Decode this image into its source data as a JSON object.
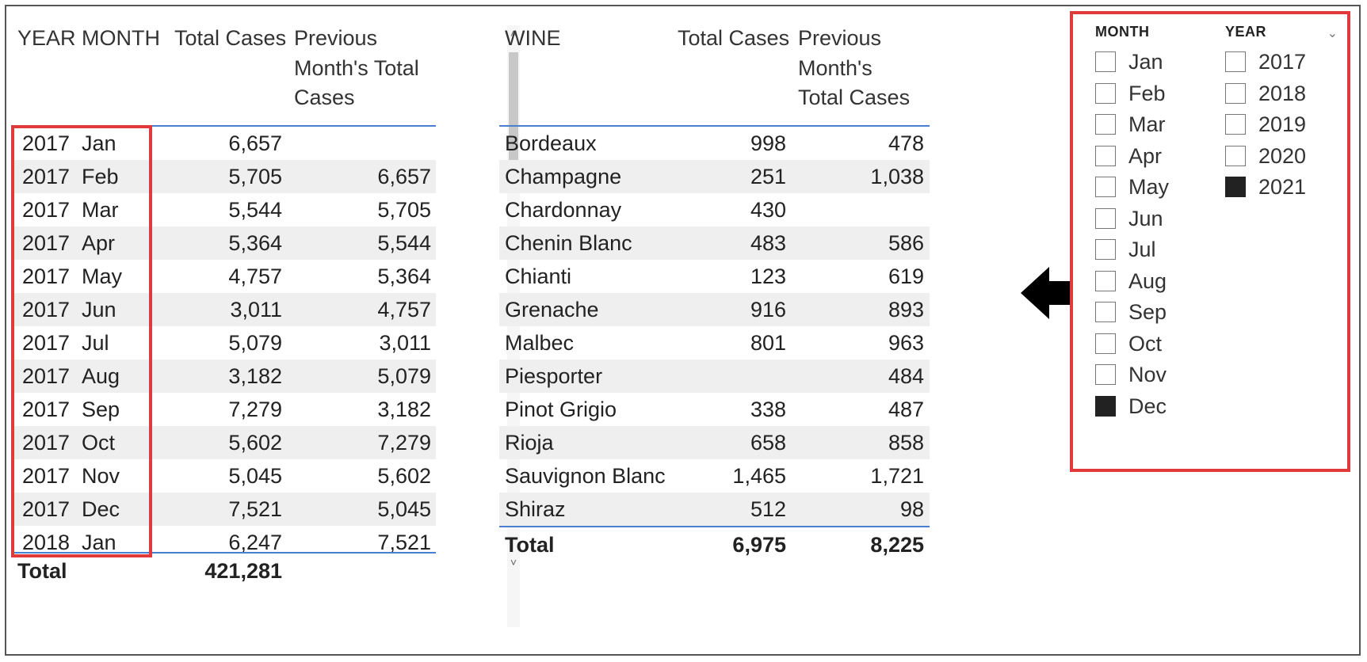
{
  "table1": {
    "headers": {
      "year": "YEAR",
      "month": "MONTH",
      "total_cases": "Total Cases",
      "prev_line1": "Previous",
      "prev_line2": "Month's Total",
      "prev_line3": "Cases"
    },
    "rows": [
      {
        "year": "2017",
        "month": "Jan",
        "total": "6,657",
        "prev": ""
      },
      {
        "year": "2017",
        "month": "Feb",
        "total": "5,705",
        "prev": "6,657"
      },
      {
        "year": "2017",
        "month": "Mar",
        "total": "5,544",
        "prev": "5,705"
      },
      {
        "year": "2017",
        "month": "Apr",
        "total": "5,364",
        "prev": "5,544"
      },
      {
        "year": "2017",
        "month": "May",
        "total": "4,757",
        "prev": "5,364"
      },
      {
        "year": "2017",
        "month": "Jun",
        "total": "3,011",
        "prev": "4,757"
      },
      {
        "year": "2017",
        "month": "Jul",
        "total": "5,079",
        "prev": "3,011"
      },
      {
        "year": "2017",
        "month": "Aug",
        "total": "3,182",
        "prev": "5,079"
      },
      {
        "year": "2017",
        "month": "Sep",
        "total": "7,279",
        "prev": "3,182"
      },
      {
        "year": "2017",
        "month": "Oct",
        "total": "5,602",
        "prev": "7,279"
      },
      {
        "year": "2017",
        "month": "Nov",
        "total": "5,045",
        "prev": "5,602"
      },
      {
        "year": "2017",
        "month": "Dec",
        "total": "7,521",
        "prev": "5,045"
      },
      {
        "year": "2018",
        "month": "Jan",
        "total": "6,247",
        "prev": "7,521"
      }
    ],
    "total_label": "Total",
    "total_value": "421,281"
  },
  "table2": {
    "headers": {
      "wine": "WINE",
      "total_cases": "Total Cases",
      "prev_line1": "Previous",
      "prev_line2": "Month's",
      "prev_line3": "Total Cases"
    },
    "rows": [
      {
        "wine": "Bordeaux",
        "total": "998",
        "prev": "478"
      },
      {
        "wine": "Champagne",
        "total": "251",
        "prev": "1,038"
      },
      {
        "wine": "Chardonnay",
        "total": "430",
        "prev": ""
      },
      {
        "wine": "Chenin Blanc",
        "total": "483",
        "prev": "586"
      },
      {
        "wine": "Chianti",
        "total": "123",
        "prev": "619"
      },
      {
        "wine": "Grenache",
        "total": "916",
        "prev": "893"
      },
      {
        "wine": "Malbec",
        "total": "801",
        "prev": "963"
      },
      {
        "wine": "Piesporter",
        "total": "",
        "prev": "484"
      },
      {
        "wine": "Pinot Grigio",
        "total": "338",
        "prev": "487"
      },
      {
        "wine": "Rioja",
        "total": "658",
        "prev": "858"
      },
      {
        "wine": "Sauvignon Blanc",
        "total": "1,465",
        "prev": "1,721"
      },
      {
        "wine": "Shiraz",
        "total": "512",
        "prev": "98"
      }
    ],
    "total_label": "Total",
    "total_value": "6,975",
    "total_prev": "8,225"
  },
  "scrollbar": {
    "up": "˄",
    "down": "˅"
  },
  "slicer": {
    "month_header": "MONTH",
    "year_header": "YEAR",
    "chevron": "⌄",
    "months": [
      {
        "label": "Jan",
        "checked": false
      },
      {
        "label": "Feb",
        "checked": false
      },
      {
        "label": "Mar",
        "checked": false
      },
      {
        "label": "Apr",
        "checked": false
      },
      {
        "label": "May",
        "checked": false
      },
      {
        "label": "Jun",
        "checked": false
      },
      {
        "label": "Jul",
        "checked": false
      },
      {
        "label": "Aug",
        "checked": false
      },
      {
        "label": "Sep",
        "checked": false
      },
      {
        "label": "Oct",
        "checked": false
      },
      {
        "label": "Nov",
        "checked": false
      },
      {
        "label": "Dec",
        "checked": true
      }
    ],
    "years": [
      {
        "label": "2017",
        "checked": false
      },
      {
        "label": "2018",
        "checked": false
      },
      {
        "label": "2019",
        "checked": false
      },
      {
        "label": "2020",
        "checked": false
      },
      {
        "label": "2021",
        "checked": true
      }
    ]
  },
  "colors": {
    "highlight": "#e23a3a",
    "header_line": "#4a7fd0",
    "row_alt": "#efefef"
  }
}
